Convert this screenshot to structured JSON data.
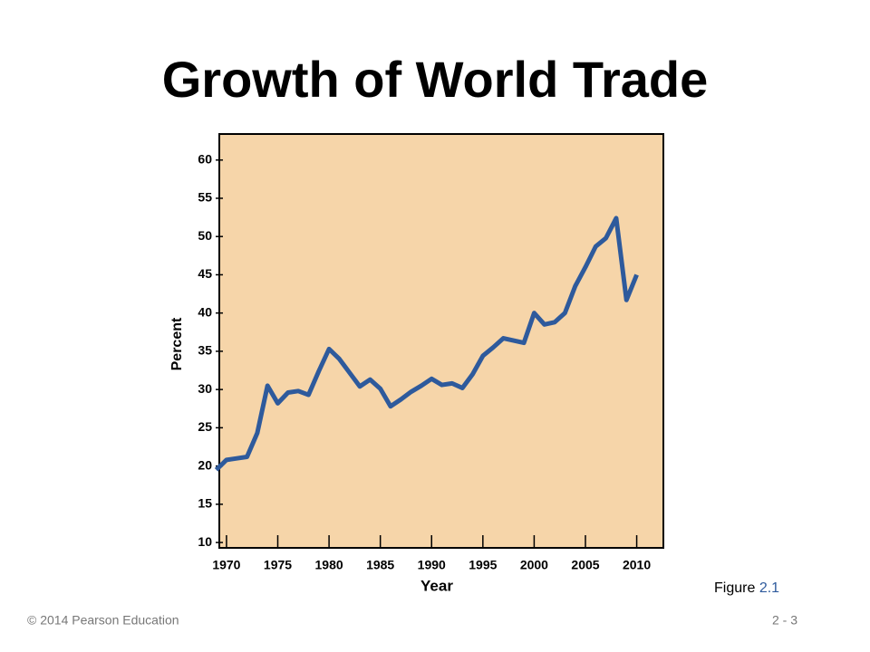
{
  "chart_data": {
    "type": "line",
    "title": "Growth of World Trade",
    "x": [
      1969,
      1970,
      1971,
      1972,
      1973,
      1974,
      1975,
      1976,
      1977,
      1978,
      1979,
      1980,
      1981,
      1982,
      1983,
      1984,
      1985,
      1986,
      1987,
      1988,
      1989,
      1990,
      1991,
      1992,
      1993,
      1994,
      1995,
      1996,
      1997,
      1998,
      1999,
      2000,
      2001,
      2002,
      2003,
      2004,
      2005,
      2006,
      2007,
      2008,
      2009,
      2010
    ],
    "series": [
      {
        "name": "World trade",
        "color": "#2e5a9c",
        "values": [
          19.5,
          20.8,
          21.0,
          21.2,
          24.3,
          30.5,
          28.2,
          29.6,
          29.8,
          29.3,
          32.4,
          35.3,
          34.0,
          32.2,
          30.4,
          31.3,
          30.1,
          27.8,
          28.7,
          29.7,
          30.5,
          31.4,
          30.6,
          30.8,
          30.2,
          32.0,
          34.4,
          35.5,
          36.7,
          36.4,
          36.1,
          40.0,
          38.5,
          38.8,
          40.0,
          43.5,
          46.0,
          48.7,
          49.8,
          52.4,
          41.7,
          45.0
        ]
      }
    ],
    "xlabel": "Year",
    "ylabel": "Percent",
    "xlim": [
      1969.3,
      2012.6
    ],
    "ylim": [
      9.3,
      63.4
    ],
    "xticks": [
      1970,
      1975,
      1980,
      1985,
      1990,
      1995,
      2000,
      2005,
      2010
    ],
    "yticks": [
      10,
      15,
      20,
      25,
      30,
      35,
      40,
      45,
      50,
      55,
      60
    ],
    "background": "#f6d5a9"
  },
  "slide": {
    "figure_label": "Figure",
    "figure_number": "2.1",
    "copyright": "© 2014 Pearson Education",
    "page": "2 - 3"
  }
}
